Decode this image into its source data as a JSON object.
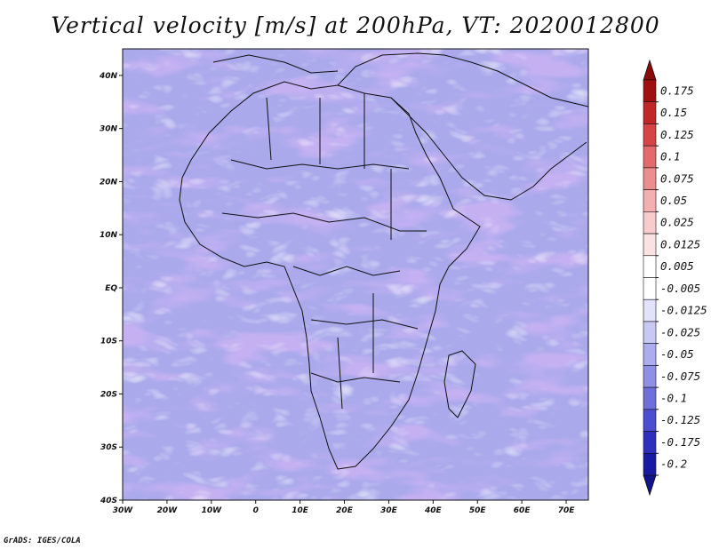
{
  "title": "Vertical velocity [m/s] at 200hPa, VT: 2020012800",
  "credit": "GrADS: IGES/COLA",
  "map": {
    "lat_range": [
      -40,
      45
    ],
    "lon_range": [
      -30,
      75
    ],
    "lat_ticks": [
      {
        "value": 40,
        "label": "40N"
      },
      {
        "value": 30,
        "label": "30N"
      },
      {
        "value": 20,
        "label": "20N"
      },
      {
        "value": 10,
        "label": "10N"
      },
      {
        "value": 0,
        "label": "EQ"
      },
      {
        "value": -10,
        "label": "10S"
      },
      {
        "value": -20,
        "label": "20S"
      },
      {
        "value": -30,
        "label": "30S"
      },
      {
        "value": -40,
        "label": "40S"
      }
    ],
    "lon_ticks": [
      {
        "value": -30,
        "label": "30W"
      },
      {
        "value": -20,
        "label": "20W"
      },
      {
        "value": -10,
        "label": "10W"
      },
      {
        "value": 0,
        "label": "0"
      },
      {
        "value": 10,
        "label": "10E"
      },
      {
        "value": 20,
        "label": "20E"
      },
      {
        "value": 30,
        "label": "30E"
      },
      {
        "value": 40,
        "label": "40E"
      },
      {
        "value": 50,
        "label": "50E"
      },
      {
        "value": 60,
        "label": "60E"
      },
      {
        "value": 70,
        "label": "70E"
      }
    ]
  },
  "colorbar": {
    "levels": [
      {
        "label": "0.175",
        "color": "#a01010"
      },
      {
        "label": "0.15",
        "color": "#c02828"
      },
      {
        "label": "0.125",
        "color": "#d64545"
      },
      {
        "label": "0.1",
        "color": "#e26a6a"
      },
      {
        "label": "0.075",
        "color": "#ec8e8e"
      },
      {
        "label": "0.05",
        "color": "#f4b0b0"
      },
      {
        "label": "0.025",
        "color": "#f8cccc"
      },
      {
        "label": "0.0125",
        "color": "#fbe2e2"
      },
      {
        "label": "0.005",
        "color": "#ffffff"
      },
      {
        "label": "-0.005",
        "color": "#ffffff"
      },
      {
        "label": "-0.0125",
        "color": "#e2e2fb"
      },
      {
        "label": "-0.025",
        "color": "#c8c8f4"
      },
      {
        "label": "-0.05",
        "color": "#acacee"
      },
      {
        "label": "-0.075",
        "color": "#8f8fe6"
      },
      {
        "label": "-0.1",
        "color": "#6e6edc"
      },
      {
        "label": "-0.125",
        "color": "#4d4dcf"
      },
      {
        "label": "-0.175",
        "color": "#2f2fbb"
      },
      {
        "label": "-0.2",
        "color": "#1a1aa0"
      }
    ],
    "top_arrow_color": "#8c0a0a",
    "bottom_arrow_color": "#12128a"
  }
}
